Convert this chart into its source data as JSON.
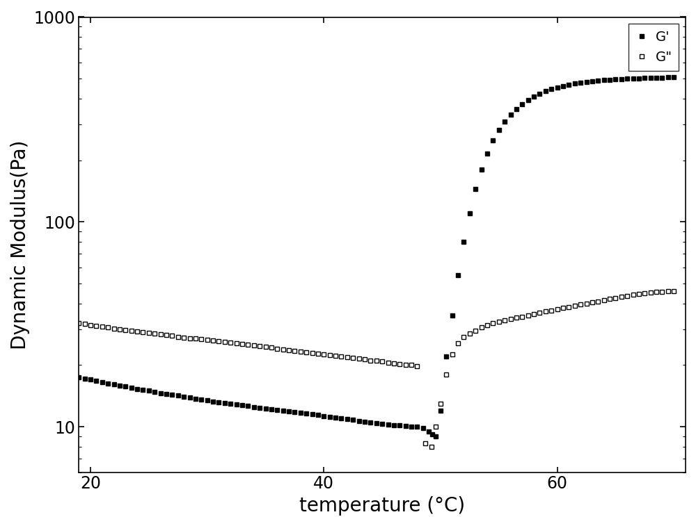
{
  "title": "",
  "xlabel": "temperature (°C)",
  "ylabel": "Dynamic Modulus(Pa)",
  "xlim": [
    19,
    71
  ],
  "ylim": [
    6,
    1000
  ],
  "xticks": [
    20,
    40,
    60
  ],
  "yticks": [
    10,
    100,
    1000
  ],
  "background_color": "#ffffff",
  "G_prime": {
    "label": "G'",
    "color": "#000000",
    "marker": "s",
    "fillstyle": "full",
    "x": [
      19.0,
      19.5,
      20.0,
      20.5,
      21.0,
      21.5,
      22.0,
      22.5,
      23.0,
      23.5,
      24.0,
      24.5,
      25.0,
      25.5,
      26.0,
      26.5,
      27.0,
      27.5,
      28.0,
      28.5,
      29.0,
      29.5,
      30.0,
      30.5,
      31.0,
      31.5,
      32.0,
      32.5,
      33.0,
      33.5,
      34.0,
      34.5,
      35.0,
      35.5,
      36.0,
      36.5,
      37.0,
      37.5,
      38.0,
      38.5,
      39.0,
      39.5,
      40.0,
      40.5,
      41.0,
      41.5,
      42.0,
      42.5,
      43.0,
      43.5,
      44.0,
      44.5,
      45.0,
      45.5,
      46.0,
      46.5,
      47.0,
      47.5,
      48.0,
      48.5,
      49.0,
      49.3,
      49.6,
      50.0,
      50.5,
      51.0,
      51.5,
      52.0,
      52.5,
      53.0,
      53.5,
      54.0,
      54.5,
      55.0,
      55.5,
      56.0,
      56.5,
      57.0,
      57.5,
      58.0,
      58.5,
      59.0,
      59.5,
      60.0,
      60.5,
      61.0,
      61.5,
      62.0,
      62.5,
      63.0,
      63.5,
      64.0,
      64.5,
      65.0,
      65.5,
      66.0,
      66.5,
      67.0,
      67.5,
      68.0,
      68.5,
      69.0,
      69.5,
      70.0
    ],
    "y": [
      17.5,
      17.2,
      17.0,
      16.8,
      16.5,
      16.3,
      16.1,
      15.9,
      15.7,
      15.5,
      15.3,
      15.2,
      15.0,
      14.8,
      14.6,
      14.5,
      14.3,
      14.2,
      14.0,
      13.9,
      13.7,
      13.6,
      13.5,
      13.3,
      13.2,
      13.1,
      13.0,
      12.9,
      12.8,
      12.7,
      12.5,
      12.4,
      12.3,
      12.2,
      12.1,
      12.0,
      11.9,
      11.8,
      11.7,
      11.6,
      11.5,
      11.4,
      11.3,
      11.2,
      11.1,
      11.0,
      10.9,
      10.8,
      10.7,
      10.6,
      10.5,
      10.4,
      10.3,
      10.25,
      10.2,
      10.15,
      10.1,
      10.05,
      10.0,
      9.85,
      9.5,
      9.2,
      9.0,
      12.0,
      22.0,
      35.0,
      55.0,
      80.0,
      110.0,
      145.0,
      180.0,
      215.0,
      250.0,
      280.0,
      308.0,
      333.0,
      355.0,
      375.0,
      393.0,
      408.0,
      422.0,
      434.0,
      445.0,
      453.0,
      461.0,
      468.0,
      474.0,
      479.0,
      483.0,
      487.0,
      490.0,
      493.0,
      495.0,
      497.0,
      499.0,
      500.0,
      501.5,
      502.5,
      503.5,
      504.0,
      505.0,
      506.0,
      507.0,
      508.0
    ]
  },
  "G_dprime": {
    "label": "G\"",
    "color": "#000000",
    "marker": "s",
    "fillstyle": "none",
    "x": [
      19.0,
      19.5,
      20.0,
      20.5,
      21.0,
      21.5,
      22.0,
      22.5,
      23.0,
      23.5,
      24.0,
      24.5,
      25.0,
      25.5,
      26.0,
      26.5,
      27.0,
      27.5,
      28.0,
      28.5,
      29.0,
      29.5,
      30.0,
      30.5,
      31.0,
      31.5,
      32.0,
      32.5,
      33.0,
      33.5,
      34.0,
      34.5,
      35.0,
      35.5,
      36.0,
      36.5,
      37.0,
      37.5,
      38.0,
      38.5,
      39.0,
      39.5,
      40.0,
      40.5,
      41.0,
      41.5,
      42.0,
      42.5,
      43.0,
      43.5,
      44.0,
      44.5,
      45.0,
      45.5,
      46.0,
      46.5,
      47.0,
      47.5,
      48.0,
      48.7,
      49.2,
      49.6,
      50.0,
      50.5,
      51.0,
      51.5,
      52.0,
      52.5,
      53.0,
      53.5,
      54.0,
      54.5,
      55.0,
      55.5,
      56.0,
      56.5,
      57.0,
      57.5,
      58.0,
      58.5,
      59.0,
      59.5,
      60.0,
      60.5,
      61.0,
      61.5,
      62.0,
      62.5,
      63.0,
      63.5,
      64.0,
      64.5,
      65.0,
      65.5,
      66.0,
      66.5,
      67.0,
      67.5,
      68.0,
      68.5,
      69.0,
      69.5,
      70.0
    ],
    "y": [
      32.0,
      31.7,
      31.4,
      31.1,
      30.8,
      30.5,
      30.2,
      30.0,
      29.7,
      29.5,
      29.2,
      29.0,
      28.7,
      28.5,
      28.2,
      28.0,
      27.8,
      27.5,
      27.3,
      27.1,
      26.9,
      26.7,
      26.5,
      26.3,
      26.1,
      25.9,
      25.7,
      25.5,
      25.3,
      25.1,
      24.9,
      24.7,
      24.5,
      24.3,
      24.1,
      23.9,
      23.7,
      23.5,
      23.3,
      23.1,
      23.0,
      22.8,
      22.6,
      22.4,
      22.2,
      22.0,
      21.8,
      21.7,
      21.5,
      21.3,
      21.1,
      21.0,
      20.8,
      20.6,
      20.4,
      20.3,
      20.1,
      20.0,
      19.8,
      8.3,
      8.0,
      10.0,
      13.0,
      18.0,
      22.5,
      25.5,
      27.5,
      28.5,
      29.5,
      30.5,
      31.2,
      32.0,
      32.5,
      33.0,
      33.5,
      34.0,
      34.5,
      35.0,
      35.5,
      36.0,
      36.5,
      37.0,
      37.5,
      38.0,
      38.5,
      39.0,
      39.5,
      40.0,
      40.5,
      41.0,
      41.5,
      42.0,
      42.5,
      43.0,
      43.5,
      44.0,
      44.5,
      44.8,
      45.1,
      45.4,
      45.6,
      45.8,
      46.0
    ]
  },
  "markersize": 5,
  "linewidth": 0,
  "legend_loc": "upper right",
  "legend_fontsize": 14,
  "axis_fontsize": 20,
  "tick_fontsize": 17
}
